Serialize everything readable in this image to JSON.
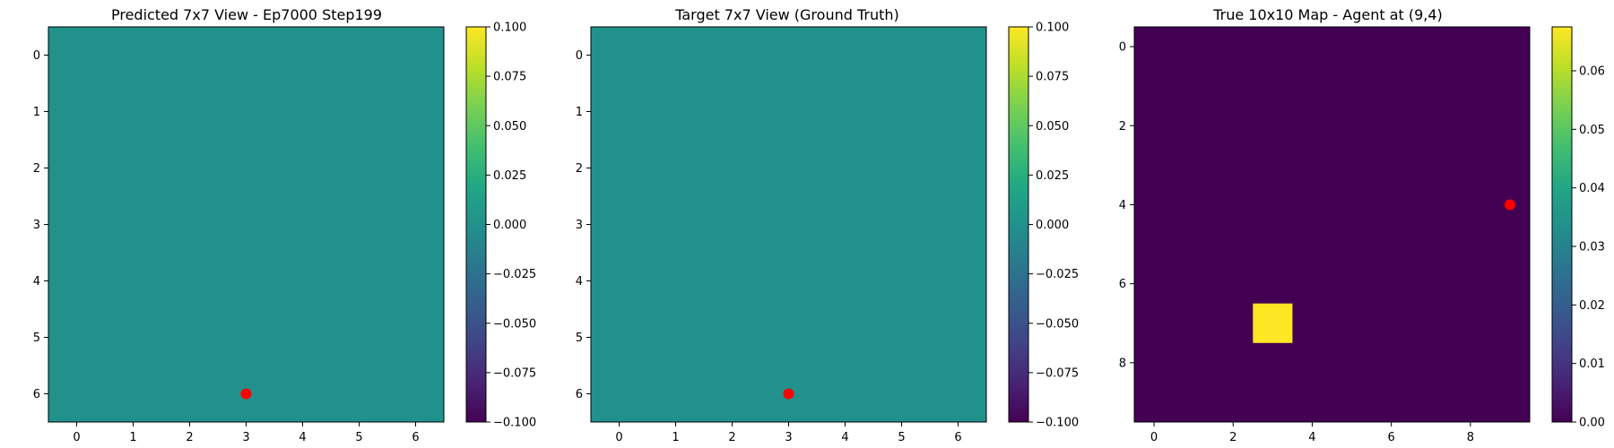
{
  "chart_data": [
    {
      "type": "heatmap",
      "title": "Predicted 7x7 View - Ep7000 Step199",
      "rows": 7,
      "cols": 7,
      "fill_value": 0.0,
      "hot_cells": [],
      "xticks": [
        0,
        1,
        2,
        3,
        4,
        5,
        6
      ],
      "yticks": [
        0,
        1,
        2,
        3,
        4,
        5,
        6
      ],
      "marker": {
        "x": 3,
        "y": 6,
        "color": "#ff0000"
      },
      "colorbar": {
        "min": -0.1,
        "max": 0.1,
        "ticks": [
          "0.100",
          "0.075",
          "0.050",
          "0.025",
          "0.000",
          "−0.025",
          "−0.050",
          "−0.075",
          "−0.100"
        ],
        "tick_values": [
          0.1,
          0.075,
          0.05,
          0.025,
          0.0,
          -0.025,
          -0.05,
          -0.075,
          -0.1
        ]
      }
    },
    {
      "type": "heatmap",
      "title": "Target 7x7 View (Ground Truth)",
      "rows": 7,
      "cols": 7,
      "fill_value": 0.0,
      "hot_cells": [],
      "xticks": [
        0,
        1,
        2,
        3,
        4,
        5,
        6
      ],
      "yticks": [
        0,
        1,
        2,
        3,
        4,
        5,
        6
      ],
      "marker": {
        "x": 3,
        "y": 6,
        "color": "#ff0000"
      },
      "colorbar": {
        "min": -0.1,
        "max": 0.1,
        "ticks": [
          "0.100",
          "0.075",
          "0.050",
          "0.025",
          "0.000",
          "−0.025",
          "−0.050",
          "−0.075",
          "−0.100"
        ],
        "tick_values": [
          0.1,
          0.075,
          0.05,
          0.025,
          0.0,
          -0.025,
          -0.05,
          -0.075,
          -0.1
        ]
      }
    },
    {
      "type": "heatmap",
      "title": "True 10x10 Map - Agent at (9,4)",
      "rows": 10,
      "cols": 10,
      "fill_value": 0.0,
      "hot_cells": [
        {
          "x": 3,
          "y": 7,
          "value": 0.0675
        }
      ],
      "xticks": [
        0,
        2,
        4,
        6,
        8
      ],
      "yticks": [
        0,
        2,
        4,
        6,
        8
      ],
      "marker": {
        "x": 9,
        "y": 4,
        "color": "#ff0000"
      },
      "colorbar": {
        "min": 0.0,
        "max": 0.0675,
        "ticks": [
          "0.06",
          "0.05",
          "0.04",
          "0.03",
          "0.02",
          "0.01",
          "0.00"
        ],
        "tick_values": [
          0.06,
          0.05,
          0.04,
          0.03,
          0.02,
          0.01,
          0.0
        ]
      }
    }
  ]
}
